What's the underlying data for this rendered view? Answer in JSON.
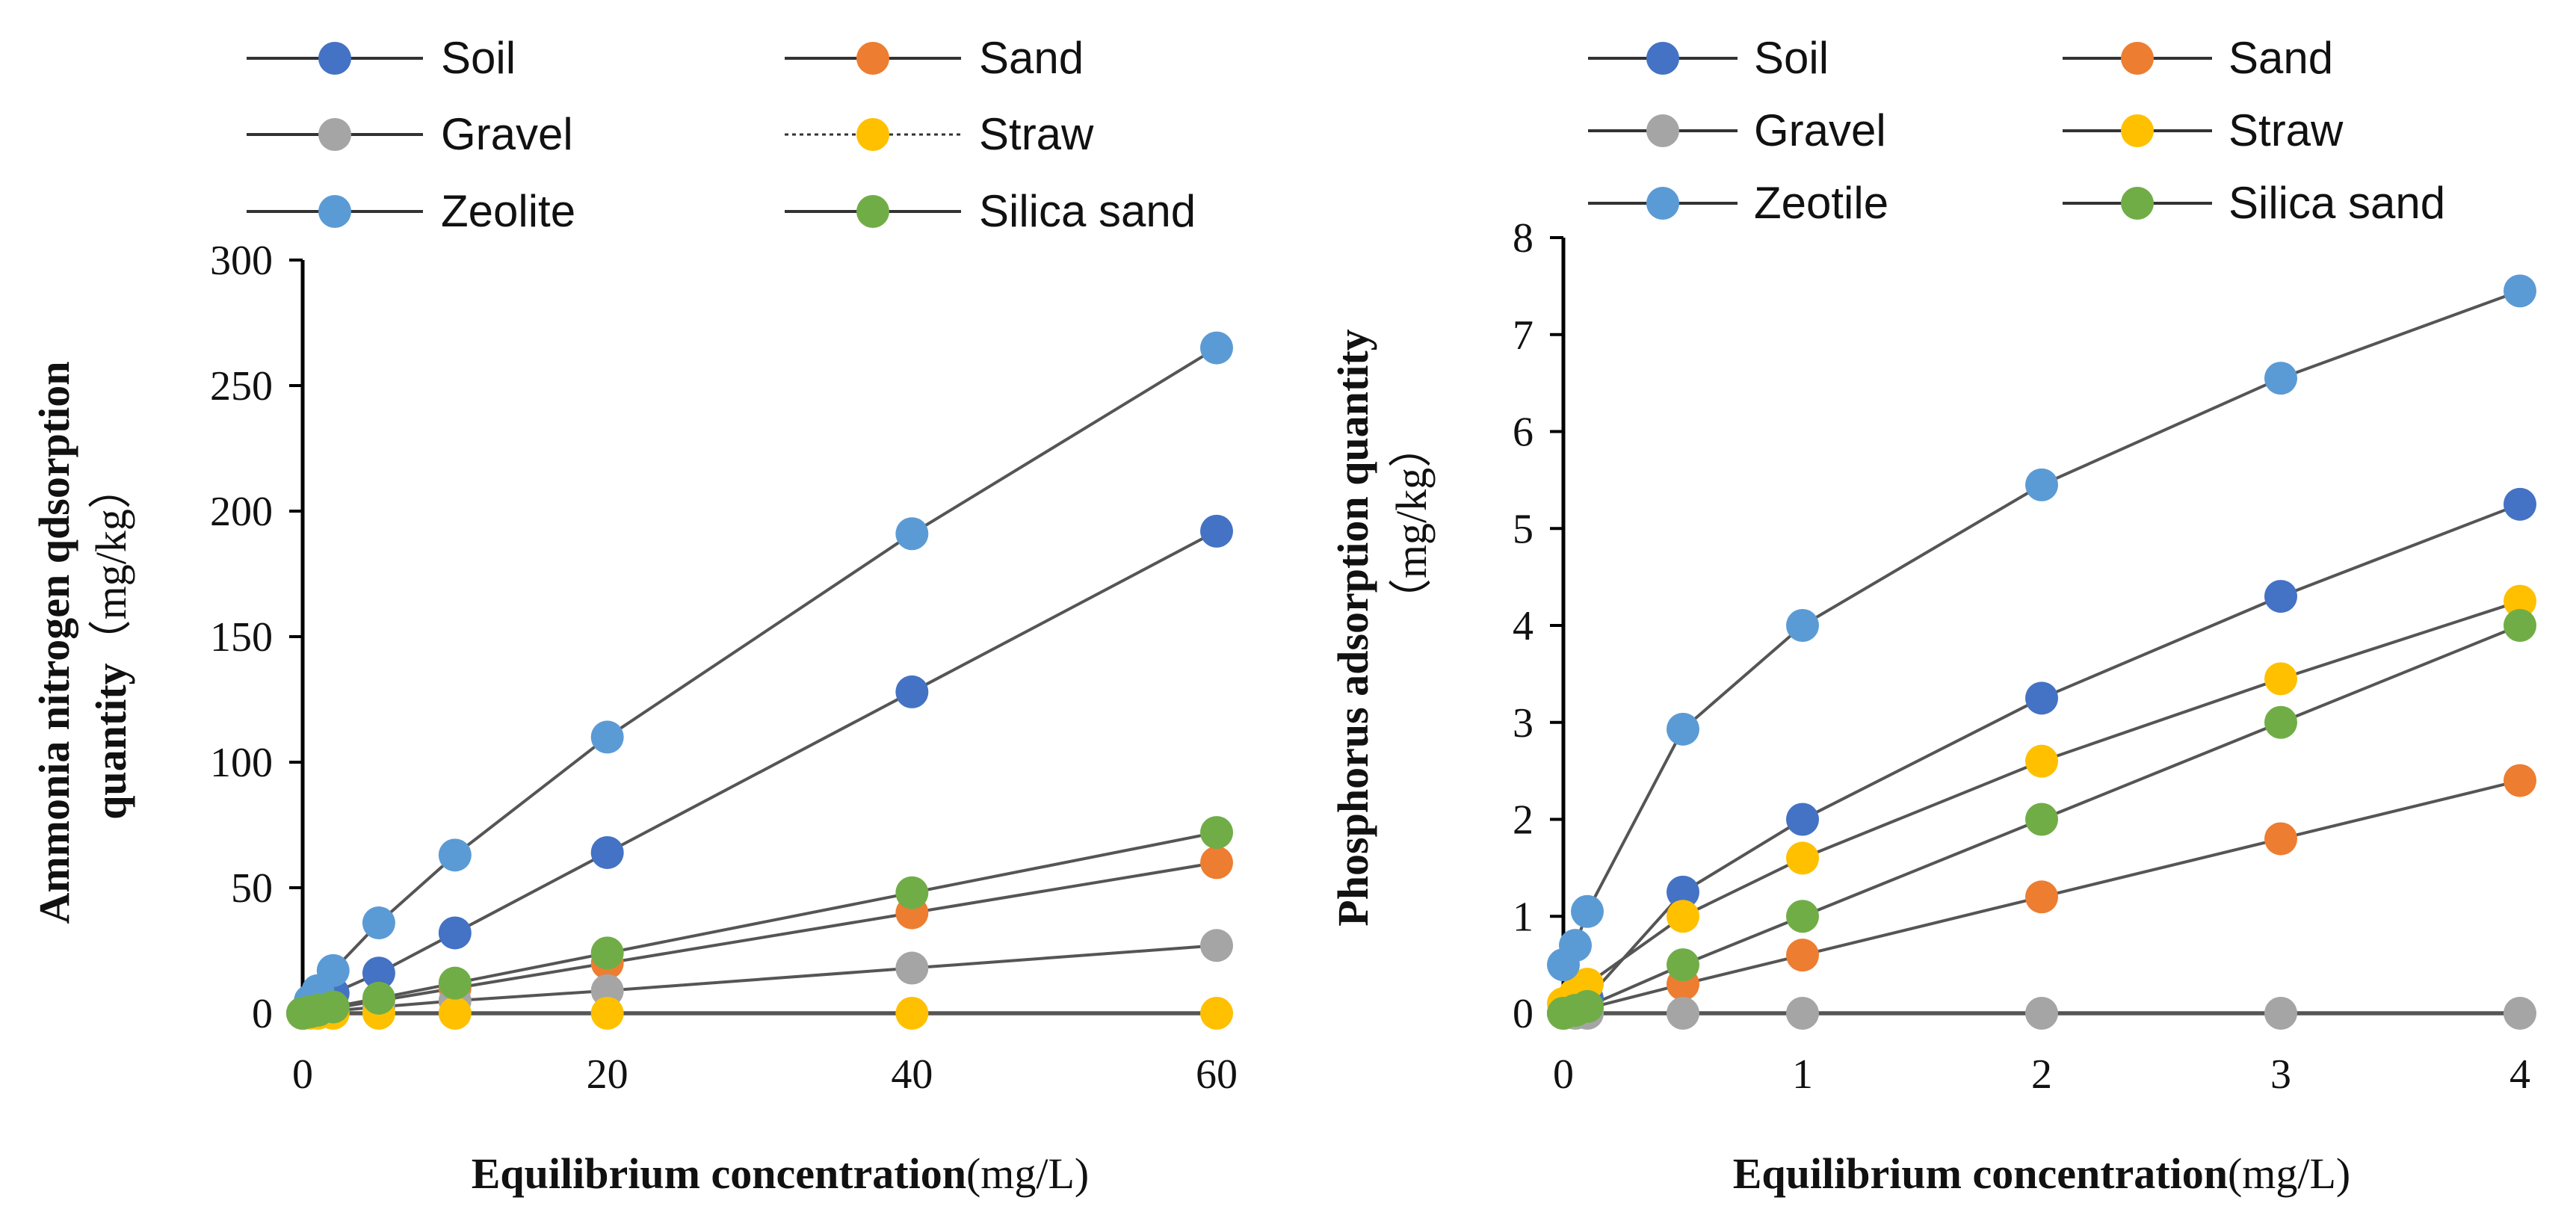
{
  "chart_data": [
    {
      "type": "line",
      "xlabel": "Equilibrium concentration",
      "xlabel_unit": "(mg/L)",
      "ylabel_line1": "Ammonia nitrogen qdsorption",
      "ylabel_line2": "quantity",
      "ylabel_unit": "（mg/kg）",
      "xlim": [
        0,
        60
      ],
      "ylim": [
        0,
        300
      ],
      "xticks": [
        "0",
        "20",
        "40",
        "60"
      ],
      "yticks": [
        "0",
        "50",
        "100",
        "150",
        "200",
        "250",
        "300"
      ],
      "legend": [
        "Soil",
        "Sand",
        "Gravel",
        "Straw",
        "Zeolite",
        "Silica sand"
      ],
      "x": [
        0,
        0.5,
        1,
        2,
        5,
        10,
        20,
        40,
        60
      ],
      "series": [
        {
          "name": "Soil",
          "color": "#4472C4",
          "values": [
            0,
            2,
            4,
            8,
            16,
            32,
            64,
            128,
            192
          ]
        },
        {
          "name": "Sand",
          "color": "#ED7D31",
          "values": [
            0,
            0.5,
            1,
            2,
            5,
            10,
            20,
            40,
            60
          ]
        },
        {
          "name": "Gravel",
          "color": "#A5A5A5",
          "values": [
            0,
            0.3,
            0.5,
            1,
            2.5,
            5,
            9,
            18,
            27
          ]
        },
        {
          "name": "Straw",
          "color": "#FFC000",
          "values": [
            0,
            0,
            0,
            0,
            0,
            0,
            0,
            0,
            0
          ],
          "dashed": true
        },
        {
          "name": "Zeolite",
          "color": "#5B9BD5",
          "values": [
            0,
            5,
            9,
            17,
            36,
            63,
            110,
            191,
            265
          ]
        },
        {
          "name": "Silica sand",
          "color": "#70AD47",
          "values": [
            0,
            0.6,
            1.2,
            2.5,
            6,
            12,
            24,
            48,
            72
          ]
        }
      ]
    },
    {
      "type": "line",
      "xlabel": "Equilibrium concentration",
      "xlabel_unit": "(mg/L)",
      "ylabel_line1": "Phosphorus adsorption quantity",
      "ylabel_line2": "（mg/kg）",
      "xlim": [
        0,
        4
      ],
      "ylim": [
        0,
        8
      ],
      "xticks": [
        "0",
        "1",
        "2",
        "3",
        "4"
      ],
      "yticks": [
        "0",
        "1",
        "2",
        "3",
        "4",
        "5",
        "6",
        "7",
        "8"
      ],
      "legend": [
        "Soil",
        "Sand",
        "Gravel",
        "Straw",
        "Zeotile",
        "Silica sand"
      ],
      "x": [
        0,
        0.05,
        0.1,
        0.5,
        1,
        2,
        3,
        4
      ],
      "series": [
        {
          "name": "Soil",
          "color": "#4472C4",
          "values": [
            0,
            0.1,
            0.15,
            1.25,
            2,
            3.25,
            4.3,
            5.25
          ]
        },
        {
          "name": "Sand",
          "color": "#ED7D31",
          "values": [
            0,
            0.02,
            0.05,
            0.3,
            0.6,
            1.2,
            1.8,
            2.4
          ]
        },
        {
          "name": "Gravel",
          "color": "#A5A5A5",
          "values": [
            0,
            0,
            0,
            0,
            0,
            0,
            0,
            0
          ]
        },
        {
          "name": "Straw",
          "color": "#FFC000",
          "values": [
            0.1,
            0.2,
            0.3,
            1.0,
            1.6,
            2.6,
            3.45,
            4.25
          ]
        },
        {
          "name": "Zeotile",
          "color": "#5B9BD5",
          "values": [
            0.5,
            0.7,
            1.05,
            2.93,
            4.0,
            5.45,
            6.55,
            7.45
          ]
        },
        {
          "name": "Silica sand",
          "color": "#70AD47",
          "values": [
            0,
            0.03,
            0.07,
            0.5,
            1.0,
            2.0,
            3.0,
            4.0
          ]
        }
      ]
    }
  ]
}
